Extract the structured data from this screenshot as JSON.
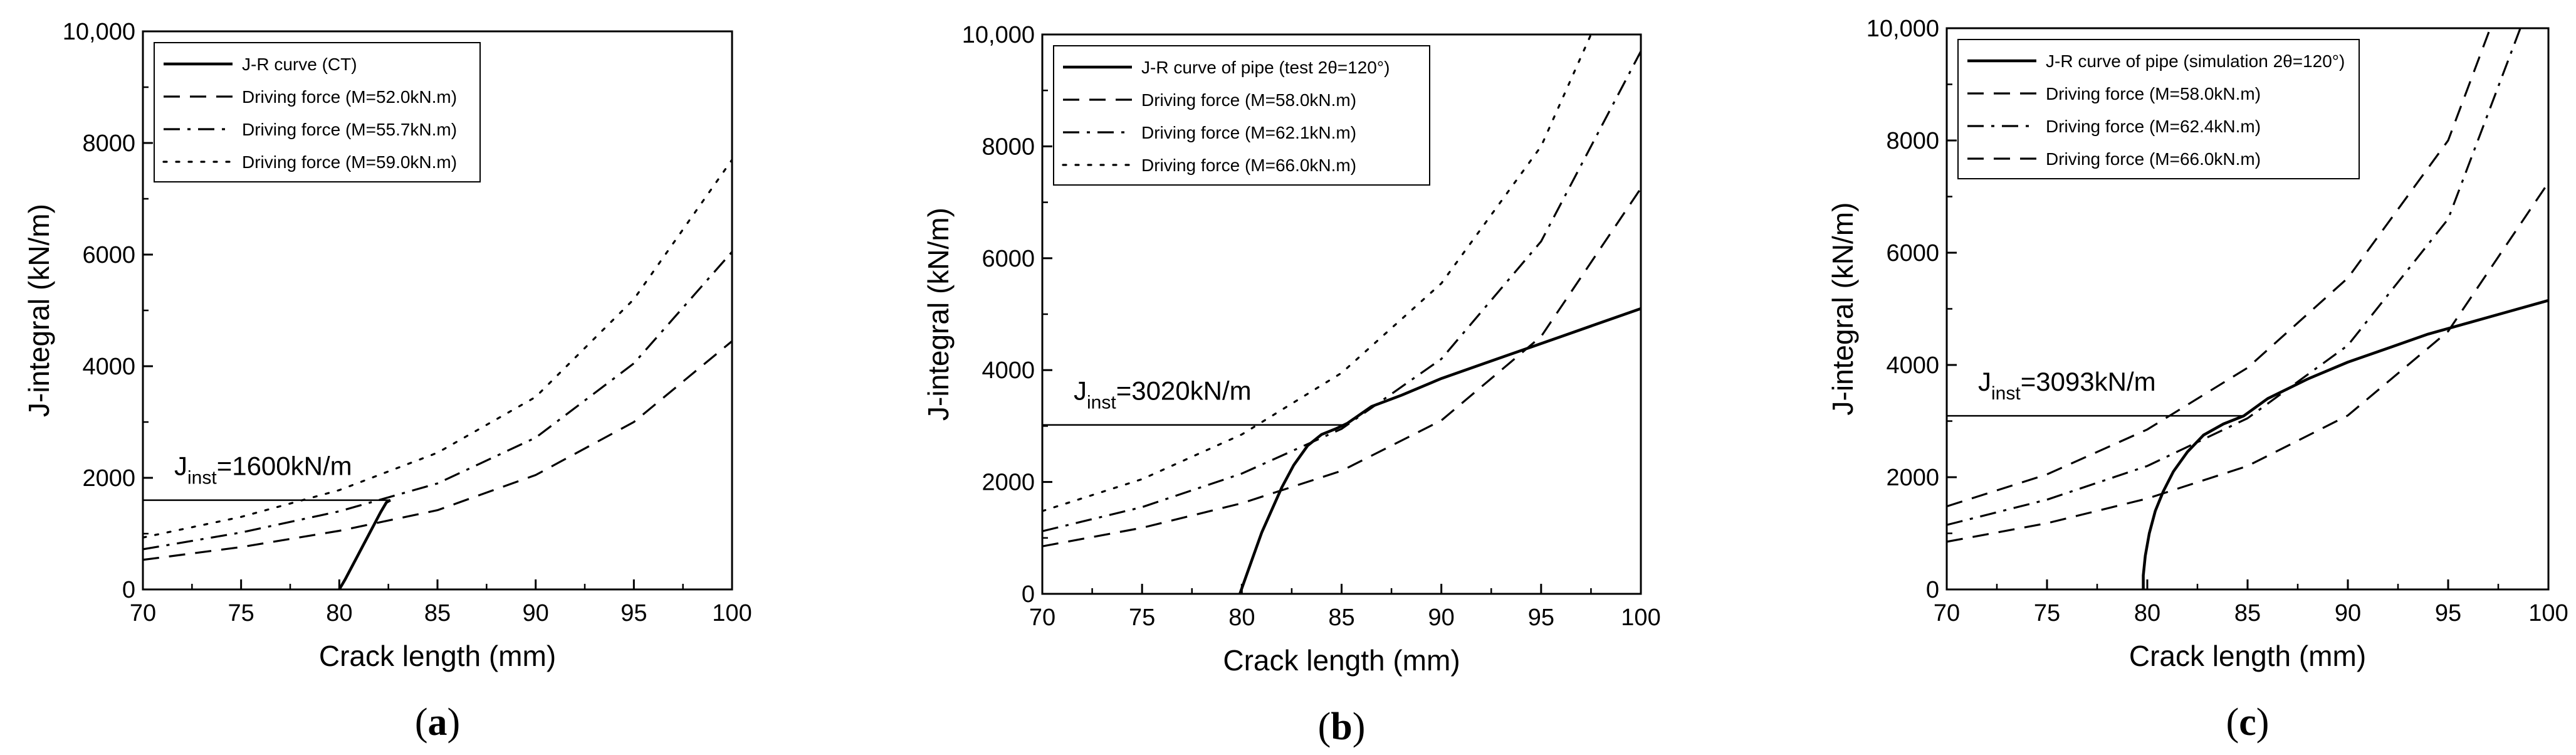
{
  "chart_data": [
    {
      "type": "line",
      "panel_label": "a",
      "xlabel": "Crack length (mm)",
      "ylabel": "J-integral (kN/m)",
      "xlim": [
        70,
        100
      ],
      "ylim": [
        0,
        10000
      ],
      "xticks": [
        70,
        75,
        80,
        85,
        90,
        95,
        100
      ],
      "yticks": [
        0,
        2000,
        4000,
        6000,
        8000,
        10000
      ],
      "ytick_labels": [
        "0",
        "2000",
        "4000",
        "6000",
        "8000",
        "10,000"
      ],
      "legend_position": "top-left",
      "annotation": {
        "text_main": "J",
        "text_sub": "inst",
        "text_rest": "=1600kN/m",
        "value": 1600,
        "x_end": 82.6
      },
      "series": [
        {
          "name": "J-R curve  (CT)",
          "style": "solid",
          "x": [
            80.0,
            80.3,
            80.6,
            80.9,
            81.2,
            81.5,
            81.8,
            82.1,
            82.4,
            82.6
          ],
          "y": [
            0,
            180,
            380,
            580,
            780,
            980,
            1180,
            1380,
            1560,
            1600
          ]
        },
        {
          "name": "Driving force (M=52.0kN.m)",
          "style": "dashed",
          "x": [
            70,
            75,
            80,
            85,
            90,
            95,
            100
          ],
          "y": [
            530,
            760,
            1050,
            1420,
            2050,
            3000,
            4450
          ]
        },
        {
          "name": "Driving force (M=55.7kN.m)",
          "style": "dashdot",
          "x": [
            70,
            75,
            80,
            85,
            90,
            95,
            100
          ],
          "y": [
            720,
            1020,
            1400,
            1900,
            2720,
            4050,
            6050
          ]
        },
        {
          "name": "Driving force (M=59.0kN.m)",
          "style": "dotted",
          "x": [
            70,
            75,
            80,
            85,
            90,
            95,
            100
          ],
          "y": [
            930,
            1300,
            1780,
            2450,
            3450,
            5200,
            7700
          ]
        }
      ]
    },
    {
      "type": "line",
      "panel_label": "b",
      "xlabel": "Crack length (mm)",
      "ylabel": "J-integral (kN/m)",
      "xlim": [
        70,
        100
      ],
      "ylim": [
        0,
        10000
      ],
      "xticks": [
        70,
        75,
        80,
        85,
        90,
        95,
        100
      ],
      "yticks": [
        0,
        2000,
        4000,
        6000,
        8000,
        10000
      ],
      "ytick_labels": [
        "0",
        "2000",
        "4000",
        "6000",
        "8000",
        "10,000"
      ],
      "legend_position": "top-left",
      "annotation": {
        "text_main": "J",
        "text_sub": "inst",
        "text_rest": "=3020kN/m",
        "value": 3020,
        "x_end": 85.3
      },
      "series": [
        {
          "name": "J-R curve of pipe (test 2θ=120°)",
          "style": "solid",
          "x": [
            79.9,
            80.2,
            80.6,
            81.0,
            81.5,
            82.0,
            82.6,
            83.3,
            84.0,
            84.7,
            85.3,
            86.5,
            88.0,
            90.0,
            92.0,
            94.0,
            96.0,
            98.0,
            100.0
          ],
          "y": [
            0,
            300,
            700,
            1100,
            1500,
            1900,
            2300,
            2650,
            2850,
            2950,
            3050,
            3350,
            3550,
            3850,
            4100,
            4350,
            4600,
            4850,
            5100
          ]
        },
        {
          "name": "Driving force (M=58.0kN.m)",
          "style": "dashed",
          "x": [
            70,
            75,
            80,
            85,
            90,
            95,
            100
          ],
          "y": [
            850,
            1180,
            1620,
            2200,
            3100,
            4600,
            7250
          ]
        },
        {
          "name": "Driving force (M=62.1kN.m)",
          "style": "dashdot",
          "x": [
            70,
            75,
            80,
            85,
            90,
            95,
            100
          ],
          "y": [
            1120,
            1550,
            2150,
            2950,
            4200,
            6300,
            9700
          ]
        },
        {
          "name": "Driving force (M=66.0kN.m)",
          "style": "dotted",
          "x": [
            70,
            75,
            80,
            85,
            90,
            95,
            97.5
          ],
          "y": [
            1480,
            2050,
            2850,
            3950,
            5550,
            8000,
            10000
          ]
        }
      ]
    },
    {
      "type": "line",
      "panel_label": "c",
      "xlabel": "Crack length (mm)",
      "ylabel": "J-integral (kN/m)",
      "xlim": [
        70,
        100
      ],
      "ylim": [
        0,
        10000
      ],
      "xticks": [
        70,
        75,
        80,
        85,
        90,
        95,
        100
      ],
      "yticks": [
        0,
        2000,
        4000,
        6000,
        8000,
        10000
      ],
      "ytick_labels": [
        "0",
        "2000",
        "4000",
        "6000",
        "8000",
        "10,000"
      ],
      "legend_position": "top-left",
      "annotation": {
        "text_main": "J",
        "text_sub": "inst",
        "text_rest": "=3093kN/m",
        "value": 3093,
        "x_end": 84.8
      },
      "series": [
        {
          "name": "J-R curve of pipe (simulation 2θ=120°)",
          "style": "solid",
          "x": [
            79.8,
            79.8,
            79.9,
            80.1,
            80.4,
            80.8,
            81.3,
            82.0,
            82.8,
            83.8,
            84.8,
            86.0,
            88.0,
            90.0,
            92.0,
            94.0,
            96.0,
            98.0,
            100.0
          ],
          "y": [
            0,
            250,
            600,
            1000,
            1400,
            1750,
            2100,
            2450,
            2750,
            2950,
            3090,
            3400,
            3750,
            4050,
            4300,
            4550,
            4750,
            4950,
            5150
          ]
        },
        {
          "name": "Driving force (M=58.0kN.m)",
          "style": "dashed",
          "x": [
            70,
            75,
            80,
            85,
            90,
            95,
            100
          ],
          "y": [
            850,
            1180,
            1620,
            2200,
            3100,
            4600,
            7250
          ]
        },
        {
          "name": "Driving force (M=62.4kN.m)",
          "style": "dashdot",
          "x": [
            70,
            75,
            80,
            85,
            90,
            95,
            98.6
          ],
          "y": [
            1150,
            1600,
            2200,
            3050,
            4350,
            6600,
            10000
          ]
        },
        {
          "name": "Driving force (M=66.0kN.m)",
          "style": "dashed",
          "x": [
            70,
            75,
            80,
            85,
            90,
            95,
            97.1
          ],
          "y": [
            1480,
            2050,
            2850,
            3950,
            5550,
            8000,
            10000
          ]
        }
      ]
    }
  ]
}
